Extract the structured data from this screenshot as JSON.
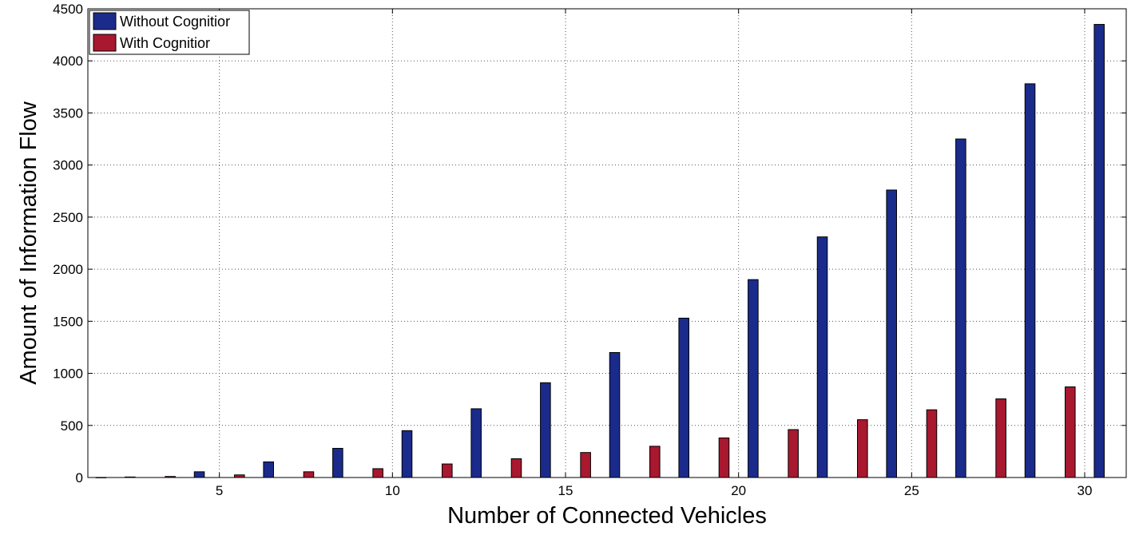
{
  "chart_data": {
    "type": "bar",
    "title": "",
    "xlabel": "Number of Connected Vehicles",
    "ylabel": "Amount of Information Flow",
    "x": [
      2,
      4,
      6,
      8,
      10,
      12,
      14,
      16,
      18,
      20,
      22,
      24,
      26,
      28,
      30
    ],
    "series": [
      {
        "name": "Without Cognitior",
        "color": "#1a2b8c",
        "values": [
          5,
          55,
          150,
          280,
          450,
          660,
          910,
          1200,
          1530,
          1900,
          2310,
          2760,
          3250,
          3780,
          4350
        ]
      },
      {
        "name": "With Cognitior",
        "color": "#a8182f",
        "values": [
          1,
          10,
          25,
          55,
          85,
          130,
          180,
          240,
          300,
          380,
          460,
          555,
          650,
          755,
          870
        ]
      }
    ],
    "xlim": [
      1.2,
      31.2
    ],
    "ylim": [
      0,
      4500
    ],
    "xticks": [
      "5",
      "10",
      "15",
      "20",
      "25",
      "30"
    ],
    "yticks": [
      "0",
      "500",
      "1000",
      "1500",
      "2000",
      "2500",
      "3000",
      "3500",
      "4000",
      "4500"
    ],
    "grid": true,
    "legend_position": "top-left"
  }
}
